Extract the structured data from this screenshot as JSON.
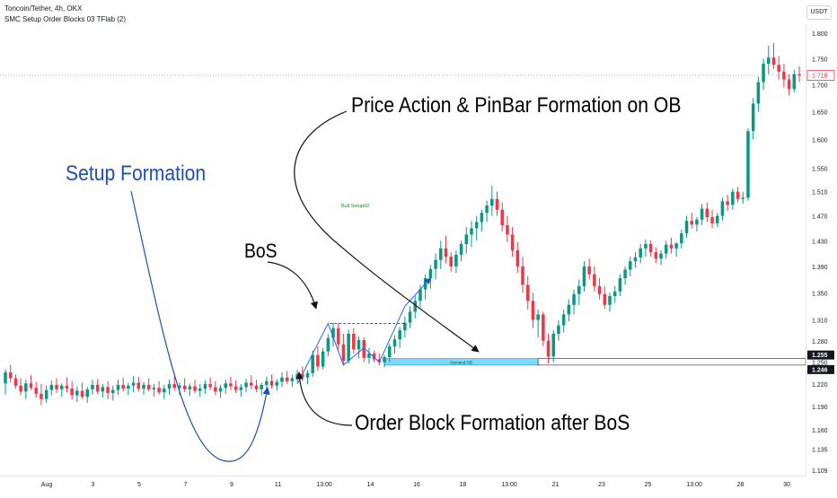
{
  "header": {
    "title": "Toncoin/Tether, 4h, OKX",
    "indicator": "SMC Setup Order Blocks 03 TFlab (2)",
    "currency": "USDT"
  },
  "annotations": {
    "setup_formation": "Setup Formation",
    "bos": "BoS",
    "price_action": "Price Action & PinBar Formation on OB",
    "order_block": "Order Block Formation after BoS"
  },
  "colors": {
    "up": "#089981",
    "down": "#f23645",
    "blue_text": "#1e4fb5",
    "zone_fill": "#7fd8f8",
    "current_price": "#f23645"
  },
  "chart_data": {
    "type": "candlestick",
    "title": "Toncoin/Tether, 4h, OKX",
    "ylim": [
      1.1,
      1.82
    ],
    "y_scale": "log",
    "y_ticks": [
      1.109,
      1.135,
      1.16,
      1.19,
      1.22,
      1.25,
      1.28,
      1.31,
      1.35,
      1.39,
      1.43,
      1.47,
      1.51,
      1.55,
      1.6,
      1.65,
      1.7,
      1.75,
      1.8
    ],
    "x_ticks": [
      "Aug",
      "3",
      "5",
      "7",
      "9",
      "11",
      "13:00",
      "14",
      "16",
      "18",
      "13:00",
      "21",
      "23",
      "25",
      "13:00",
      "28",
      "30"
    ],
    "price_labels": [
      {
        "value": 1.718,
        "text": "1.718",
        "style": "current"
      },
      {
        "value": 1.255,
        "text": "1.255",
        "style": "zone"
      },
      {
        "value": 1.246,
        "text": "1.246",
        "style": "zone"
      }
    ],
    "signal_label": "Bull Setup02",
    "order_block": {
      "label": "Demand OB",
      "top": 1.255,
      "bottom": 1.246
    },
    "bos_level": 1.305,
    "candles": [
      [
        1.221,
        1.24,
        1.206,
        1.236
      ],
      [
        1.236,
        1.246,
        1.222,
        1.228
      ],
      [
        1.228,
        1.233,
        1.214,
        1.218
      ],
      [
        1.218,
        1.228,
        1.205,
        1.21
      ],
      [
        1.21,
        1.226,
        1.2,
        1.221
      ],
      [
        1.221,
        1.232,
        1.212,
        1.215
      ],
      [
        1.215,
        1.223,
        1.202,
        1.207
      ],
      [
        1.207,
        1.22,
        1.192,
        1.2
      ],
      [
        1.2,
        1.218,
        1.195,
        1.212
      ],
      [
        1.212,
        1.225,
        1.205,
        1.219
      ],
      [
        1.219,
        1.228,
        1.208,
        1.213
      ],
      [
        1.213,
        1.221,
        1.203,
        1.218
      ],
      [
        1.218,
        1.229,
        1.209,
        1.214
      ],
      [
        1.214,
        1.224,
        1.199,
        1.205
      ],
      [
        1.205,
        1.217,
        1.196,
        1.211
      ],
      [
        1.211,
        1.222,
        1.2,
        1.203
      ],
      [
        1.203,
        1.216,
        1.195,
        1.213
      ],
      [
        1.213,
        1.226,
        1.206,
        1.219
      ],
      [
        1.219,
        1.227,
        1.207,
        1.21
      ],
      [
        1.21,
        1.22,
        1.202,
        1.216
      ],
      [
        1.216,
        1.224,
        1.2,
        1.208
      ],
      [
        1.208,
        1.218,
        1.198,
        1.212
      ],
      [
        1.212,
        1.226,
        1.205,
        1.219
      ],
      [
        1.219,
        1.229,
        1.21,
        1.214
      ],
      [
        1.214,
        1.222,
        1.205,
        1.218
      ],
      [
        1.218,
        1.231,
        1.209,
        1.222
      ],
      [
        1.222,
        1.23,
        1.21,
        1.214
      ],
      [
        1.214,
        1.223,
        1.206,
        1.219
      ],
      [
        1.219,
        1.228,
        1.21,
        1.213
      ],
      [
        1.213,
        1.22,
        1.203,
        1.215
      ],
      [
        1.215,
        1.224,
        1.206,
        1.209
      ],
      [
        1.209,
        1.219,
        1.2,
        1.214
      ],
      [
        1.214,
        1.226,
        1.206,
        1.22
      ],
      [
        1.22,
        1.23,
        1.211,
        1.215
      ],
      [
        1.215,
        1.222,
        1.205,
        1.218
      ],
      [
        1.218,
        1.228,
        1.209,
        1.213
      ],
      [
        1.213,
        1.221,
        1.204,
        1.217
      ],
      [
        1.217,
        1.226,
        1.208,
        1.211
      ],
      [
        1.211,
        1.22,
        1.203,
        1.214
      ],
      [
        1.214,
        1.225,
        1.207,
        1.22
      ],
      [
        1.22,
        1.229,
        1.212,
        1.216
      ],
      [
        1.216,
        1.224,
        1.205,
        1.21
      ],
      [
        1.21,
        1.219,
        1.202,
        1.215
      ],
      [
        1.215,
        1.226,
        1.207,
        1.221
      ],
      [
        1.221,
        1.23,
        1.212,
        1.217
      ],
      [
        1.217,
        1.225,
        1.208,
        1.212
      ],
      [
        1.212,
        1.22,
        1.203,
        1.216
      ],
      [
        1.216,
        1.227,
        1.209,
        1.222
      ],
      [
        1.222,
        1.232,
        1.213,
        1.218
      ],
      [
        1.218,
        1.226,
        1.209,
        1.213
      ],
      [
        1.213,
        1.222,
        1.205,
        1.219
      ],
      [
        1.219,
        1.23,
        1.212,
        1.224
      ],
      [
        1.224,
        1.233,
        1.214,
        1.218
      ],
      [
        1.218,
        1.227,
        1.211,
        1.223
      ],
      [
        1.223,
        1.236,
        1.216,
        1.229
      ],
      [
        1.229,
        1.238,
        1.22,
        1.224
      ],
      [
        1.224,
        1.233,
        1.216,
        1.228
      ],
      [
        1.228,
        1.24,
        1.222,
        1.234
      ],
      [
        1.234,
        1.244,
        1.224,
        1.229
      ],
      [
        1.229,
        1.239,
        1.22,
        1.235
      ],
      [
        1.235,
        1.266,
        1.23,
        1.26
      ],
      [
        1.26,
        1.272,
        1.238,
        1.244
      ],
      [
        1.244,
        1.27,
        1.24,
        1.265
      ],
      [
        1.265,
        1.29,
        1.258,
        1.284
      ],
      [
        1.284,
        1.306,
        1.272,
        1.298
      ],
      [
        1.298,
        1.305,
        1.268,
        1.275
      ],
      [
        1.275,
        1.29,
        1.246,
        1.252
      ],
      [
        1.252,
        1.296,
        1.248,
        1.29
      ],
      [
        1.29,
        1.298,
        1.262,
        1.268
      ],
      [
        1.268,
        1.286,
        1.255,
        1.281
      ],
      [
        1.281,
        1.285,
        1.25,
        1.256
      ],
      [
        1.256,
        1.27,
        1.248,
        1.262
      ],
      [
        1.262,
        1.266,
        1.25,
        1.254
      ],
      [
        1.254,
        1.262,
        1.246,
        1.25
      ],
      [
        1.25,
        1.26,
        1.243,
        1.257
      ],
      [
        1.257,
        1.276,
        1.25,
        1.272
      ],
      [
        1.272,
        1.288,
        1.262,
        1.282
      ],
      [
        1.282,
        1.3,
        1.27,
        1.295
      ],
      [
        1.295,
        1.315,
        1.285,
        1.306
      ],
      [
        1.306,
        1.33,
        1.298,
        1.322
      ],
      [
        1.322,
        1.345,
        1.312,
        1.338
      ],
      [
        1.338,
        1.362,
        1.328,
        1.355
      ],
      [
        1.355,
        1.378,
        1.34,
        1.372
      ],
      [
        1.372,
        1.392,
        1.356,
        1.386
      ],
      [
        1.386,
        1.41,
        1.37,
        1.4
      ],
      [
        1.4,
        1.43,
        1.386,
        1.418
      ],
      [
        1.418,
        1.438,
        1.395,
        1.405
      ],
      [
        1.405,
        1.412,
        1.382,
        1.39
      ],
      [
        1.39,
        1.415,
        1.38,
        1.408
      ],
      [
        1.408,
        1.43,
        1.398,
        1.425
      ],
      [
        1.425,
        1.452,
        1.41,
        1.44
      ],
      [
        1.44,
        1.462,
        1.42,
        1.45
      ],
      [
        1.45,
        1.47,
        1.43,
        1.46
      ],
      [
        1.46,
        1.48,
        1.445,
        1.475
      ],
      [
        1.475,
        1.495,
        1.46,
        1.487
      ],
      [
        1.487,
        1.52,
        1.47,
        1.498
      ],
      [
        1.498,
        1.51,
        1.47,
        1.48
      ],
      [
        1.48,
        1.492,
        1.445,
        1.455
      ],
      [
        1.455,
        1.47,
        1.428,
        1.44
      ],
      [
        1.44,
        1.452,
        1.405,
        1.415
      ],
      [
        1.415,
        1.428,
        1.38,
        1.39
      ],
      [
        1.39,
        1.405,
        1.35,
        1.362
      ],
      [
        1.362,
        1.375,
        1.325,
        1.338
      ],
      [
        1.338,
        1.35,
        1.298,
        1.31
      ],
      [
        1.31,
        1.325,
        1.285,
        1.318
      ],
      [
        1.318,
        1.322,
        1.272,
        1.28
      ],
      [
        1.28,
        1.29,
        1.248,
        1.258
      ],
      [
        1.258,
        1.295,
        1.25,
        1.29
      ],
      [
        1.29,
        1.31,
        1.28,
        1.302
      ],
      [
        1.302,
        1.325,
        1.292,
        1.318
      ],
      [
        1.318,
        1.34,
        1.308,
        1.332
      ],
      [
        1.332,
        1.355,
        1.318,
        1.348
      ],
      [
        1.348,
        1.37,
        1.332,
        1.36
      ],
      [
        1.36,
        1.398,
        1.352,
        1.39
      ],
      [
        1.39,
        1.402,
        1.37,
        1.378
      ],
      [
        1.378,
        1.39,
        1.352,
        1.36
      ],
      [
        1.36,
        1.372,
        1.34,
        1.348
      ],
      [
        1.348,
        1.36,
        1.326,
        1.332
      ],
      [
        1.332,
        1.35,
        1.322,
        1.345
      ],
      [
        1.345,
        1.36,
        1.335,
        1.352
      ],
      [
        1.352,
        1.378,
        1.345,
        1.372
      ],
      [
        1.372,
        1.39,
        1.362,
        1.385
      ],
      [
        1.385,
        1.405,
        1.375,
        1.398
      ],
      [
        1.398,
        1.412,
        1.388,
        1.404
      ],
      [
        1.404,
        1.425,
        1.395,
        1.418
      ],
      [
        1.418,
        1.432,
        1.405,
        1.425
      ],
      [
        1.425,
        1.43,
        1.405,
        1.412
      ],
      [
        1.412,
        1.42,
        1.395,
        1.402
      ],
      [
        1.402,
        1.415,
        1.392,
        1.41
      ],
      [
        1.41,
        1.43,
        1.402,
        1.424
      ],
      [
        1.424,
        1.435,
        1.41,
        1.418
      ],
      [
        1.418,
        1.428,
        1.405,
        1.426
      ],
      [
        1.426,
        1.448,
        1.418,
        1.442
      ],
      [
        1.442,
        1.47,
        1.435,
        1.462
      ],
      [
        1.462,
        1.475,
        1.45,
        1.456
      ],
      [
        1.456,
        1.468,
        1.445,
        1.464
      ],
      [
        1.464,
        1.49,
        1.455,
        1.482
      ],
      [
        1.482,
        1.492,
        1.46,
        1.468
      ],
      [
        1.468,
        1.48,
        1.45,
        1.458
      ],
      [
        1.458,
        1.475,
        1.452,
        1.47
      ],
      [
        1.47,
        1.5,
        1.462,
        1.494
      ],
      [
        1.494,
        1.505,
        1.478,
        1.488
      ],
      [
        1.488,
        1.515,
        1.48,
        1.51
      ],
      [
        1.51,
        1.518,
        1.492,
        1.498
      ],
      [
        1.498,
        1.51,
        1.49,
        1.5
      ],
      [
        1.5,
        1.62,
        1.495,
        1.615
      ],
      [
        1.615,
        1.675,
        1.6,
        1.665
      ],
      [
        1.665,
        1.715,
        1.65,
        1.705
      ],
      [
        1.705,
        1.75,
        1.69,
        1.74
      ],
      [
        1.74,
        1.775,
        1.72,
        1.752
      ],
      [
        1.752,
        1.78,
        1.73,
        1.738
      ],
      [
        1.738,
        1.755,
        1.71,
        1.725
      ],
      [
        1.725,
        1.74,
        1.695,
        1.71
      ],
      [
        1.71,
        1.72,
        1.68,
        1.692
      ],
      [
        1.692,
        1.728,
        1.686,
        1.72
      ],
      [
        1.72,
        1.735,
        1.705,
        1.718
      ]
    ]
  }
}
